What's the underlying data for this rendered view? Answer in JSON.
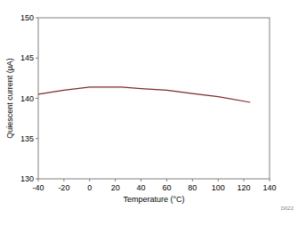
{
  "chart_data": {
    "type": "line",
    "x_label": "Temperature (°C)",
    "y_label": "Quiescent current (µA)",
    "annotation": "D022",
    "x": [
      -40,
      -20,
      0,
      25,
      40,
      60,
      80,
      100,
      125
    ],
    "series": [
      {
        "name": "Quiescent current",
        "color": "#7b2a2a",
        "values": [
          140.5,
          141.0,
          141.4,
          141.4,
          141.2,
          141.0,
          140.6,
          140.2,
          139.5
        ]
      }
    ],
    "xlim": [
      -40,
      140
    ],
    "xticks": [
      -40,
      -20,
      0,
      20,
      40,
      60,
      80,
      100,
      120,
      140
    ],
    "ylim": [
      130,
      150
    ],
    "yticks": [
      130,
      135,
      140,
      145,
      150
    ],
    "grid": false
  }
}
